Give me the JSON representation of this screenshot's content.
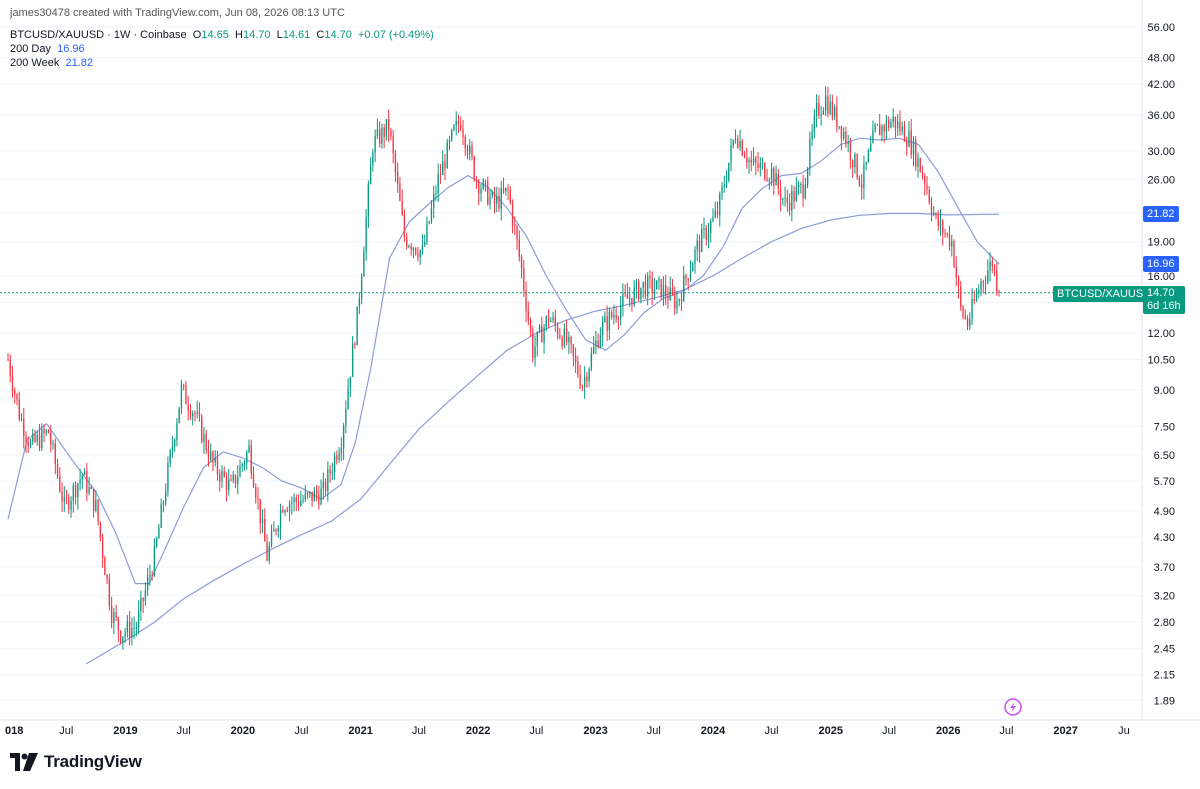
{
  "header": {
    "created_line": "james30478 created with TradingView.com, Jun 08, 2026 08:13 UTC",
    "symbol": "BTCUSD/XAUUSD · 1W · Coinbase",
    "o_label": "O",
    "o_value": "14.65",
    "h_label": "H",
    "h_value": "14.70",
    "l_label": "L",
    "l_value": "14.61",
    "c_label": "C",
    "c_value": "14.70",
    "change": "+0.07 (+0.49%)",
    "ma1_label": "200 Day",
    "ma1_value": "16.96",
    "ma2_label": "200 Week",
    "ma2_value": "21.82"
  },
  "price_tags": {
    "ma2": "21.82",
    "ma1": "16.96",
    "symbol": "BTCUSD/XAUUSD",
    "last": "14.70",
    "countdown": "6d 16h"
  },
  "footer": {
    "brand": "TradingView"
  },
  "colors": {
    "up": "#089981",
    "down": "#f23645",
    "ma": "#8f9bd8",
    "ma1_tag": "#2962ff",
    "ma2_tag": "#2962ff",
    "last_tag": "#089981"
  },
  "chart_data": {
    "type": "candlestick",
    "scale": "log",
    "y_ticks": [
      "56.00",
      "48.00",
      "42.00",
      "36.00",
      "30.00",
      "26.00",
      "22.00",
      "19.00",
      "16.00",
      "14.00",
      "12.00",
      "10.50",
      "9.00",
      "7.50",
      "6.50",
      "5.70",
      "4.90",
      "4.30",
      "3.70",
      "3.20",
      "2.80",
      "2.45",
      "2.15",
      "1.89"
    ],
    "x_ticks": [
      "018",
      "Jul",
      "2019",
      "Jul",
      "2020",
      "Jul",
      "2021",
      "Jul",
      "2022",
      "Jul",
      "2023",
      "Jul",
      "2024",
      "Jul",
      "2025",
      "Jul",
      "2026",
      "Jul",
      "2027",
      "Ju"
    ],
    "ylim": [
      1.8,
      58
    ],
    "xlim": [
      "2018-01-01",
      "2027-08-20"
    ],
    "price_keypoints": [
      [
        "2018-01-01",
        10.5
      ],
      [
        "2018-02-05",
        8.0
      ],
      [
        "2018-03-12",
        6.8
      ],
      [
        "2018-05-07",
        7.3
      ],
      [
        "2018-06-25",
        5.0
      ],
      [
        "2018-08-20",
        5.9
      ],
      [
        "2018-10-01",
        5.0
      ],
      [
        "2018-11-19",
        2.95
      ],
      [
        "2018-12-17",
        2.65
      ],
      [
        "2019-02-04",
        2.75
      ],
      [
        "2019-04-01",
        3.9
      ],
      [
        "2019-05-20",
        6.4
      ],
      [
        "2019-06-24",
        9.0
      ],
      [
        "2019-08-05",
        8.0
      ],
      [
        "2019-09-30",
        6.2
      ],
      [
        "2019-11-25",
        5.5
      ],
      [
        "2020-01-20",
        6.7
      ],
      [
        "2020-03-16",
        3.9
      ],
      [
        "2020-05-04",
        5.1
      ],
      [
        "2020-07-13",
        5.2
      ],
      [
        "2020-09-07",
        5.4
      ],
      [
        "2020-11-02",
        7.1
      ],
      [
        "2020-12-21",
        13.0
      ],
      [
        "2021-02-08",
        31.0
      ],
      [
        "2021-03-29",
        34.0
      ],
      [
        "2021-05-17",
        19.5
      ],
      [
        "2021-07-12",
        18.0
      ],
      [
        "2021-08-30",
        26.0
      ],
      [
        "2021-10-18",
        33.0
      ],
      [
        "2021-11-08",
        35.0
      ],
      [
        "2021-12-27",
        26.0
      ],
      [
        "2022-02-21",
        23.0
      ],
      [
        "2022-04-04",
        24.5
      ],
      [
        "2022-05-16,",
        16.5
      ],
      [
        "2022-06-20",
        11.0
      ],
      [
        "2022-08-08",
        13.0
      ],
      [
        "2022-10-03",
        11.5
      ],
      [
        "2022-11-21",
        9.3
      ],
      [
        "2023-01-16",
        12.2
      ],
      [
        "2023-03-27",
        14.0
      ],
      [
        "2023-05-29",
        15.2
      ],
      [
        "2023-07-24",
        15.0
      ],
      [
        "2023-09-11",
        14.0
      ],
      [
        "2023-11-13",
        18.5
      ],
      [
        "2024-01-15",
        22.0
      ],
      [
        "2024-03-11",
        33.0
      ],
      [
        "2024-04-29",
        28.0
      ],
      [
        "2024-07-01",
        27.0
      ],
      [
        "2024-08-12",
        23.0
      ],
      [
        "2024-10-07",
        25.0
      ],
      [
        "2024-11-18",
        36.5
      ],
      [
        "2024-12-16",
        39.0
      ],
      [
        "2025-02-10",
        33.0
      ],
      [
        "2025-04-07",
        25.5
      ],
      [
        "2025-05-19",
        33.0
      ],
      [
        "2025-07-14",
        35.0
      ],
      [
        "2025-09-01",
        32.0
      ],
      [
        "2025-10-20",
        26.0
      ],
      [
        "2025-11-24",
        21.0
      ],
      [
        "2026-01-12",
        19.0
      ],
      [
        "2026-02-09",
        13.5
      ],
      [
        "2026-03-02",
        12.6
      ],
      [
        "2026-04-13",
        15.5
      ],
      [
        "2026-05-18",
        17.2
      ],
      [
        "2026-06-08",
        14.7
      ]
    ],
    "ma_200_day": [
      [
        "2018-01-01",
        4.7
      ],
      [
        "2018-03-01",
        7.0
      ],
      [
        "2018-05-01",
        7.6
      ],
      [
        "2018-07-15",
        6.4
      ],
      [
        "2018-10-01",
        5.4
      ],
      [
        "2018-12-01",
        4.4
      ],
      [
        "2019-02-01",
        3.4
      ],
      [
        "2019-03-15",
        3.4
      ],
      [
        "2019-05-01",
        4.0
      ],
      [
        "2019-07-01",
        5.0
      ],
      [
        "2019-09-01",
        6.1
      ],
      [
        "2019-11-01",
        6.6
      ],
      [
        "2020-01-01",
        6.4
      ],
      [
        "2020-03-01",
        6.1
      ],
      [
        "2020-05-01",
        5.7
      ],
      [
        "2020-07-01",
        5.5
      ],
      [
        "2020-09-01",
        5.2
      ],
      [
        "2020-11-01",
        5.6
      ],
      [
        "2020-12-15",
        6.9
      ],
      [
        "2021-02-01",
        10.0
      ],
      [
        "2021-04-01",
        17.5
      ],
      [
        "2021-06-01",
        21.0
      ],
      [
        "2021-08-01",
        23.0
      ],
      [
        "2021-10-01",
        25.0
      ],
      [
        "2021-12-01",
        26.5
      ],
      [
        "2022-02-01",
        25.0
      ],
      [
        "2022-04-01",
        22.5
      ],
      [
        "2022-06-01",
        19.5
      ],
      [
        "2022-08-01",
        16.0
      ],
      [
        "2022-10-01",
        13.5
      ],
      [
        "2022-12-01",
        11.6
      ],
      [
        "2023-02-01",
        11.0
      ],
      [
        "2023-04-01",
        11.9
      ],
      [
        "2023-06-01",
        13.3
      ],
      [
        "2023-08-01",
        14.3
      ],
      [
        "2023-10-01",
        14.8
      ],
      [
        "2023-12-01",
        16.0
      ],
      [
        "2024-02-01",
        18.5
      ],
      [
        "2024-04-01",
        22.5
      ],
      [
        "2024-06-01",
        24.8
      ],
      [
        "2024-08-01",
        26.5
      ],
      [
        "2024-10-01",
        26.8
      ],
      [
        "2024-12-01",
        28.5
      ],
      [
        "2025-02-01",
        31.0
      ],
      [
        "2025-04-01",
        32.0
      ],
      [
        "2025-06-01",
        31.7
      ],
      [
        "2025-08-01",
        32.0
      ],
      [
        "2025-10-01",
        31.0
      ],
      [
        "2025-12-01",
        27.0
      ],
      [
        "2026-02-01",
        22.5
      ],
      [
        "2026-04-01",
        19.0
      ],
      [
        "2026-06-08",
        16.96
      ]
    ],
    "ma_200_week": [
      [
        "2018-09-01",
        2.27
      ],
      [
        "2019-01-01",
        2.55
      ],
      [
        "2019-04-01",
        2.8
      ],
      [
        "2019-07-01",
        3.15
      ],
      [
        "2019-10-01",
        3.45
      ],
      [
        "2020-01-01",
        3.75
      ],
      [
        "2020-04-01",
        4.05
      ],
      [
        "2020-07-01",
        4.35
      ],
      [
        "2020-10-01",
        4.65
      ],
      [
        "2021-01-01",
        5.2
      ],
      [
        "2021-04-01",
        6.2
      ],
      [
        "2021-07-01",
        7.4
      ],
      [
        "2021-10-01",
        8.5
      ],
      [
        "2022-01-01",
        9.7
      ],
      [
        "2022-04-01",
        11.0
      ],
      [
        "2022-07-01",
        12.0
      ],
      [
        "2022-10-01",
        12.8
      ],
      [
        "2023-01-01",
        13.4
      ],
      [
        "2023-04-01",
        13.8
      ],
      [
        "2023-07-01",
        14.3
      ],
      [
        "2023-10-01",
        14.9
      ],
      [
        "2024-01-01",
        16.0
      ],
      [
        "2024-04-01",
        17.5
      ],
      [
        "2024-07-01",
        19.0
      ],
      [
        "2024-10-01",
        20.3
      ],
      [
        "2025-01-01",
        21.2
      ],
      [
        "2025-04-01",
        21.7
      ],
      [
        "2025-07-01",
        21.9
      ],
      [
        "2025-10-01",
        21.9
      ],
      [
        "2026-01-01",
        21.75
      ],
      [
        "2026-06-08",
        21.82
      ]
    ]
  }
}
